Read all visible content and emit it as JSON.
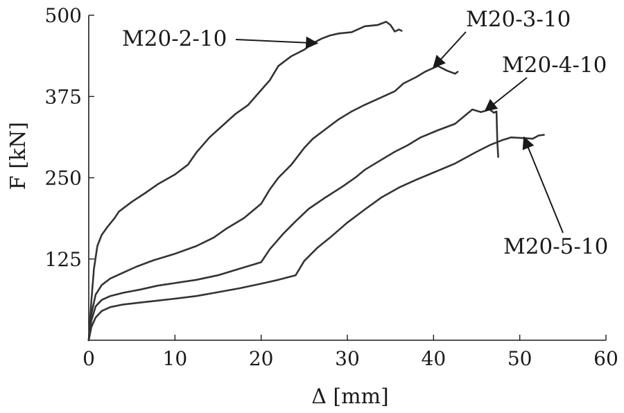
{
  "chart_data": {
    "type": "line",
    "xlabel": "Δ [mm]",
    "ylabel": "F [kN]",
    "xlim": [
      0,
      60
    ],
    "ylim": [
      0,
      500
    ],
    "x_ticks": [
      0,
      10,
      20,
      30,
      40,
      50,
      60
    ],
    "y_ticks": [
      125,
      250,
      375,
      500
    ],
    "grid": false,
    "line_color": "#333333",
    "series": [
      {
        "name": "M20-2-10",
        "x": [
          0,
          0.3,
          0.6,
          1.0,
          1.5,
          2.2,
          3.0,
          3.5,
          5.0,
          6.5,
          8.0,
          10.0,
          11.5,
          12.5,
          14.0,
          15.5,
          17.0,
          18.5,
          20.0,
          21.0,
          22.0,
          23.5,
          25.0,
          26.0,
          27.0,
          28.0,
          29.0,
          30.5,
          31.5,
          32.0,
          33.5,
          34.5,
          35.0,
          35.5,
          36.0,
          36.3
        ],
        "y": [
          0,
          60,
          110,
          145,
          162,
          175,
          188,
          198,
          213,
          226,
          240,
          255,
          270,
          289,
          312,
          330,
          348,
          362,
          385,
          400,
          422,
          437,
          447,
          457,
          464,
          469,
          472,
          474,
          480,
          483,
          485,
          490,
          485,
          475,
          478,
          476
        ]
      },
      {
        "name": "M20-3-10",
        "x": [
          0,
          0.3,
          0.8,
          1.5,
          2.5,
          4.0,
          5.5,
          7.5,
          10.0,
          12.5,
          14.5,
          16.0,
          18.0,
          20.0,
          21.0,
          22.0,
          23.5,
          25.0,
          26.0,
          27.5,
          29.0,
          30.5,
          32.0,
          34.0,
          35.5,
          36.5,
          38.0,
          39.0,
          40.5,
          41.5,
          42.5,
          42.8
        ],
        "y": [
          0,
          40,
          70,
          85,
          95,
          104,
          113,
          123,
          133,
          145,
          158,
          172,
          188,
          210,
          232,
          250,
          270,
          296,
          310,
          325,
          340,
          352,
          362,
          374,
          383,
          395,
          405,
          413,
          422,
          415,
          410,
          413
        ]
      },
      {
        "name": "M20-4-10",
        "x": [
          0,
          0.3,
          0.8,
          1.5,
          2.5,
          4.0,
          6.0,
          8.0,
          10.0,
          12.5,
          15.0,
          17.5,
          20.0,
          21.0,
          22.5,
          24.0,
          25.5,
          27.5,
          29.5,
          31.0,
          32.0,
          34.0,
          35.5,
          37.0,
          38.5,
          40.5,
          42.5,
          44.5,
          45.5,
          46.5,
          47.0,
          47.3,
          47.4,
          47.5
        ],
        "y": [
          0,
          30,
          52,
          62,
          68,
          73,
          78,
          84,
          88,
          93,
          100,
          110,
          120,
          140,
          163,
          183,
          202,
          220,
          237,
          251,
          262,
          278,
          290,
          300,
          312,
          323,
          333,
          355,
          351,
          355,
          350,
          352,
          305,
          282
        ]
      },
      {
        "name": "M20-5-10",
        "x": [
          0,
          0.3,
          0.8,
          1.5,
          2.5,
          4.0,
          6.0,
          8.0,
          10.0,
          12.5,
          15.0,
          17.5,
          20.0,
          22.0,
          24.0,
          25.0,
          26.5,
          28.0,
          30.0,
          32.0,
          34.0,
          36.0,
          38.0,
          40.0,
          42.5,
          45.0,
          46.5,
          48.0,
          49.0,
          50.5,
          51.5,
          52.2,
          52.8
        ],
        "y": [
          0,
          20,
          35,
          45,
          51,
          55,
          58,
          61,
          64,
          68,
          74,
          80,
          87,
          93,
          100,
          122,
          142,
          158,
          181,
          201,
          220,
          235,
          247,
          258,
          272,
          290,
          300,
          308,
          312,
          311,
          310,
          315,
          316
        ]
      }
    ],
    "annotations": [
      {
        "text": "M20-2-10",
        "series": "M20-2-10",
        "arrow_to": [
          26.5,
          457
        ]
      },
      {
        "text": "M20-3-10",
        "series": "M20-3-10",
        "arrow_to": [
          40.0,
          420
        ]
      },
      {
        "text": "M20-4-10",
        "series": "M20-4-10",
        "arrow_to": [
          46.0,
          353
        ]
      },
      {
        "text": "M20-5-10",
        "series": "M20-5-10",
        "arrow_to": [
          50.5,
          312
        ]
      }
    ]
  }
}
